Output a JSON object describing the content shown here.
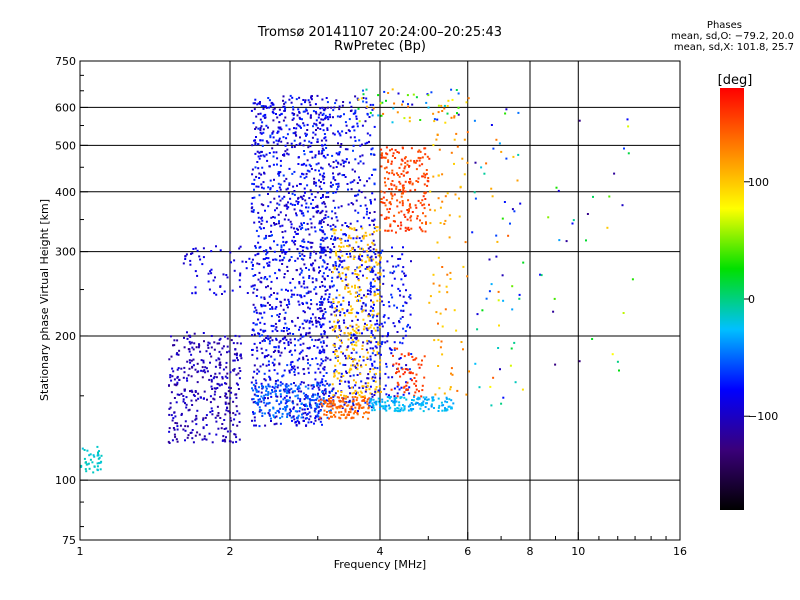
{
  "chart_data": {
    "type": "scatter",
    "title": "Tromsø 20141107 20:24:00–20:25:43",
    "subtitle": "RwPretec (Bp)",
    "xlabel": "Frequency [MHz]",
    "ylabel": "Stationary phase Virtual Height [km]",
    "x_scale": "log",
    "y_scale": "log",
    "xlim": [
      1,
      16
    ],
    "ylim": [
      75,
      750
    ],
    "x_ticks": [
      1,
      2,
      4,
      6,
      8,
      10,
      16
    ],
    "x_tick_labels": [
      "1",
      "2",
      "4",
      "6",
      "8",
      "10",
      "16"
    ],
    "y_ticks": [
      75,
      100,
      200,
      300,
      400,
      500,
      600,
      750
    ],
    "y_tick_labels": [
      "75",
      "100",
      "200",
      "300",
      "400",
      "500",
      "600",
      "750"
    ],
    "grid": true,
    "stats": {
      "header": "Phases",
      "line_o": "mean, sd,O: −79.2, 20.0",
      "line_x": "mean, sd,X: 101.8, 25.7"
    },
    "colorbar": {
      "label": "[deg]",
      "range": [
        -180,
        180
      ],
      "ticks": [
        100,
        0,
        -100
      ],
      "tick_labels": [
        "100",
        "0",
        "−100"
      ],
      "colormap": "rainbow",
      "stops": [
        "#000000",
        "#3a007a",
        "#0000ff",
        "#00c0ff",
        "#00e000",
        "#ffff00",
        "#ff8000",
        "#ff0000"
      ]
    },
    "clusters": [
      {
        "f": [
          1.0,
          1.1
        ],
        "h": [
          103,
          118
        ],
        "phase": [
          -20,
          -10
        ],
        "n": 40
      },
      {
        "f": [
          1.5,
          2.1
        ],
        "h": [
          120,
          205
        ],
        "phase": [
          -120,
          -90
        ],
        "n": 360
      },
      {
        "f": [
          1.6,
          2.2
        ],
        "h": [
          245,
          310
        ],
        "phase": [
          -100,
          -80
        ],
        "n": 60
      },
      {
        "f": [
          2.2,
          3.1
        ],
        "h": [
          130,
          640
        ],
        "phase": [
          -110,
          -60
        ],
        "n": 1200
      },
      {
        "f": [
          3.0,
          3.9
        ],
        "h": [
          140,
          640
        ],
        "phase": [
          -110,
          -60
        ],
        "n": 650
      },
      {
        "f": [
          2.2,
          3.2
        ],
        "h": [
          135,
          160
        ],
        "phase": [
          -60,
          -40
        ],
        "n": 150
      },
      {
        "f": [
          3.0,
          3.8
        ],
        "h": [
          135,
          150
        ],
        "phase": [
          130,
          150
        ],
        "n": 130
      },
      {
        "f": [
          3.2,
          4.0
        ],
        "h": [
          150,
          340
        ],
        "phase": [
          95,
          110
        ],
        "n": 300
      },
      {
        "f": [
          3.8,
          4.6
        ],
        "h": [
          150,
          310
        ],
        "phase": [
          -100,
          -60
        ],
        "n": 180
      },
      {
        "f": [
          4.0,
          5.0
        ],
        "h": [
          330,
          500
        ],
        "phase": [
          140,
          165
        ],
        "n": 220
      },
      {
        "f": [
          4.2,
          4.9
        ],
        "h": [
          150,
          190
        ],
        "phase": [
          150,
          170
        ],
        "n": 60
      },
      {
        "f": [
          3.8,
          5.6
        ],
        "h": [
          140,
          150
        ],
        "phase": [
          -40,
          -20
        ],
        "n": 160
      },
      {
        "f": [
          5.0,
          6.0
        ],
        "h": [
          150,
          640
        ],
        "phase": [
          90,
          140
        ],
        "n": 90
      },
      {
        "f": [
          3.6,
          5.8
        ],
        "h": [
          560,
          660
        ],
        "phase": [
          -110,
          140
        ],
        "n": 60
      },
      {
        "f": [
          6.0,
          7.6
        ],
        "h": [
          140,
          650
        ],
        "phase": [
          -120,
          150
        ],
        "n": 60
      },
      {
        "f": [
          7.4,
          13.2
        ],
        "h": [
          150,
          600
        ],
        "phase": [
          -130,
          140
        ],
        "n": 35
      }
    ]
  }
}
